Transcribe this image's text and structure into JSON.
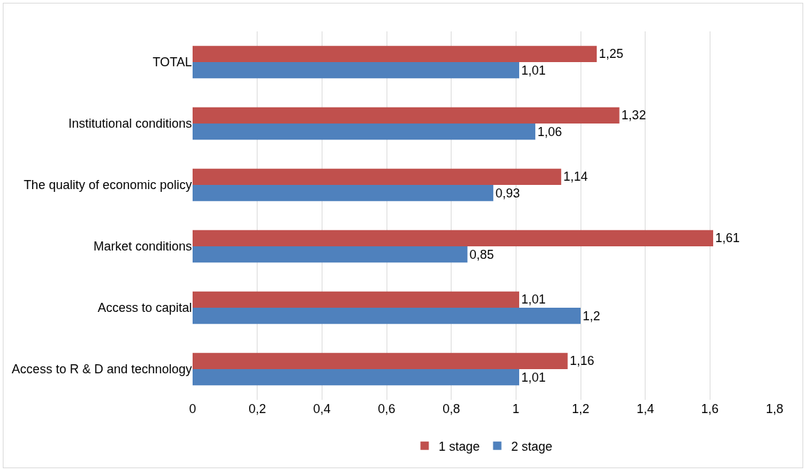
{
  "chart_data": {
    "type": "bar",
    "orientation": "horizontal",
    "categories": [
      "TOTAL",
      "Institutional conditions",
      "The quality of economic policy",
      "Market conditions",
      "Access to capital",
      "Access to R & D and technology"
    ],
    "series": [
      {
        "name": "1 stage",
        "color": "#c0504d",
        "values": [
          1.25,
          1.32,
          1.14,
          1.61,
          1.01,
          1.16
        ],
        "value_labels": [
          "1,25",
          "1,32",
          "1,14",
          "1,61",
          "1,01",
          "1,16"
        ]
      },
      {
        "name": "2 stage",
        "color": "#4f81bd",
        "values": [
          1.01,
          1.06,
          0.93,
          0.85,
          1.2,
          1.01
        ],
        "value_labels": [
          "1,01",
          "1,06",
          "0,93",
          "0,85",
          "1,2",
          "1,01"
        ]
      }
    ],
    "xlim": [
      0,
      1.8
    ],
    "xticks": [
      0,
      {
        "value": 0.2,
        "label": "0,2"
      },
      {
        "value": 0.4,
        "label": "0,4"
      },
      {
        "value": 0.6,
        "label": "0,6"
      },
      {
        "value": 0.8,
        "label": "0,8"
      },
      1,
      {
        "value": 1.2,
        "label": "1,2"
      },
      {
        "value": 1.4,
        "label": "1,4"
      },
      {
        "value": 1.6,
        "label": "1,6"
      },
      {
        "value": 1.8,
        "label": "1,8"
      }
    ],
    "grid": "x",
    "legend": "bottom"
  }
}
